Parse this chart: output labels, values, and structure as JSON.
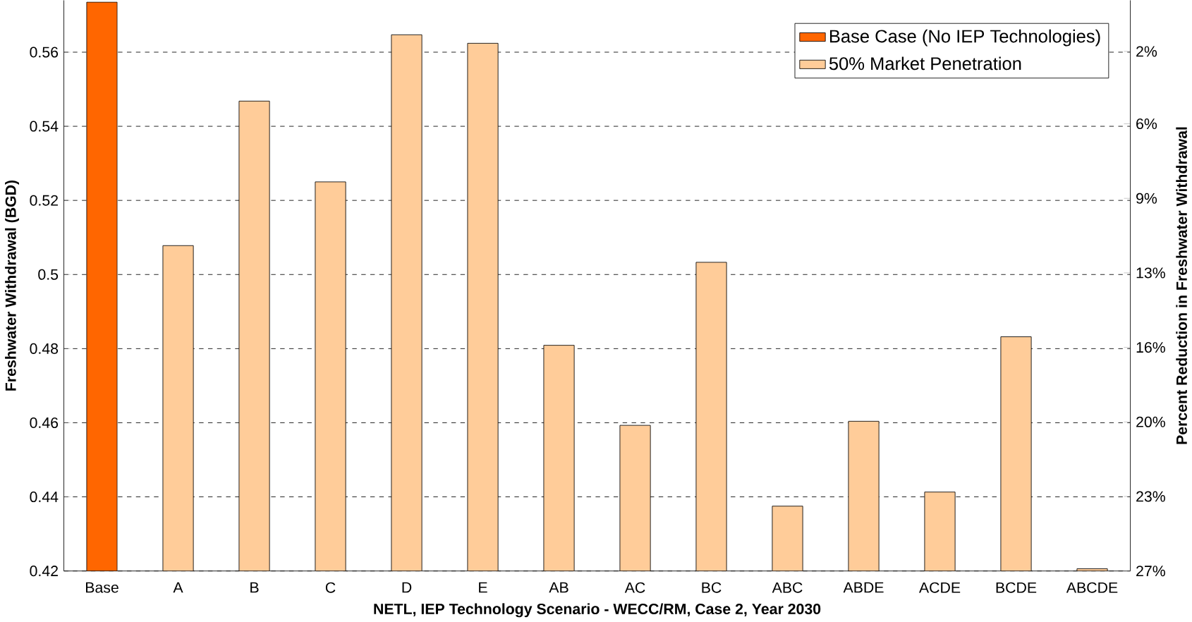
{
  "chart_data": {
    "type": "bar",
    "xlabel": "NETL, IEP Technology Scenario - WECC/RM, Case 2, Year 2030",
    "ylabel": "Freshwater Withdrawal (BGD)",
    "y2label": "Percent Reduction in Freshwater Withdrawal",
    "categories": [
      "Base",
      "A",
      "B",
      "C",
      "D",
      "E",
      "AB",
      "AC",
      "BC",
      "ABC",
      "ABDE",
      "ACDE",
      "BCDE",
      "ABCDE"
    ],
    "series": [
      {
        "name": "Base Case (No IEP Technologies)",
        "color": "#ff6600",
        "values": [
          0.5735,
          null,
          null,
          null,
          null,
          null,
          null,
          null,
          null,
          null,
          null,
          null,
          null,
          null
        ]
      },
      {
        "name": "50% Market Penetration",
        "color": "#ffcc99",
        "values": [
          null,
          0.5078,
          0.5468,
          0.525,
          0.5647,
          0.5624,
          0.4809,
          0.4593,
          0.5033,
          0.4375,
          0.4604,
          0.4413,
          0.4832,
          0.4206
        ]
      }
    ],
    "ylim": [
      0.42,
      0.574
    ],
    "yticks": [
      0.42,
      0.44,
      0.46,
      0.48,
      0.5,
      0.52,
      0.54,
      0.56
    ],
    "y2lim": [
      26.8,
      0
    ],
    "y2ticks": [
      {
        "value": 26.8,
        "label": "27%"
      },
      {
        "value": 23.3,
        "label": "23%"
      },
      {
        "value": 19.8,
        "label": "20%"
      },
      {
        "value": 16.3,
        "label": "16%"
      },
      {
        "value": 12.8,
        "label": "13%"
      },
      {
        "value": 9.3,
        "label": "9%"
      },
      {
        "value": 5.8,
        "label": "6%"
      },
      {
        "value": 2.4,
        "label": "2%"
      }
    ],
    "grid": "y",
    "legend": "top right"
  }
}
